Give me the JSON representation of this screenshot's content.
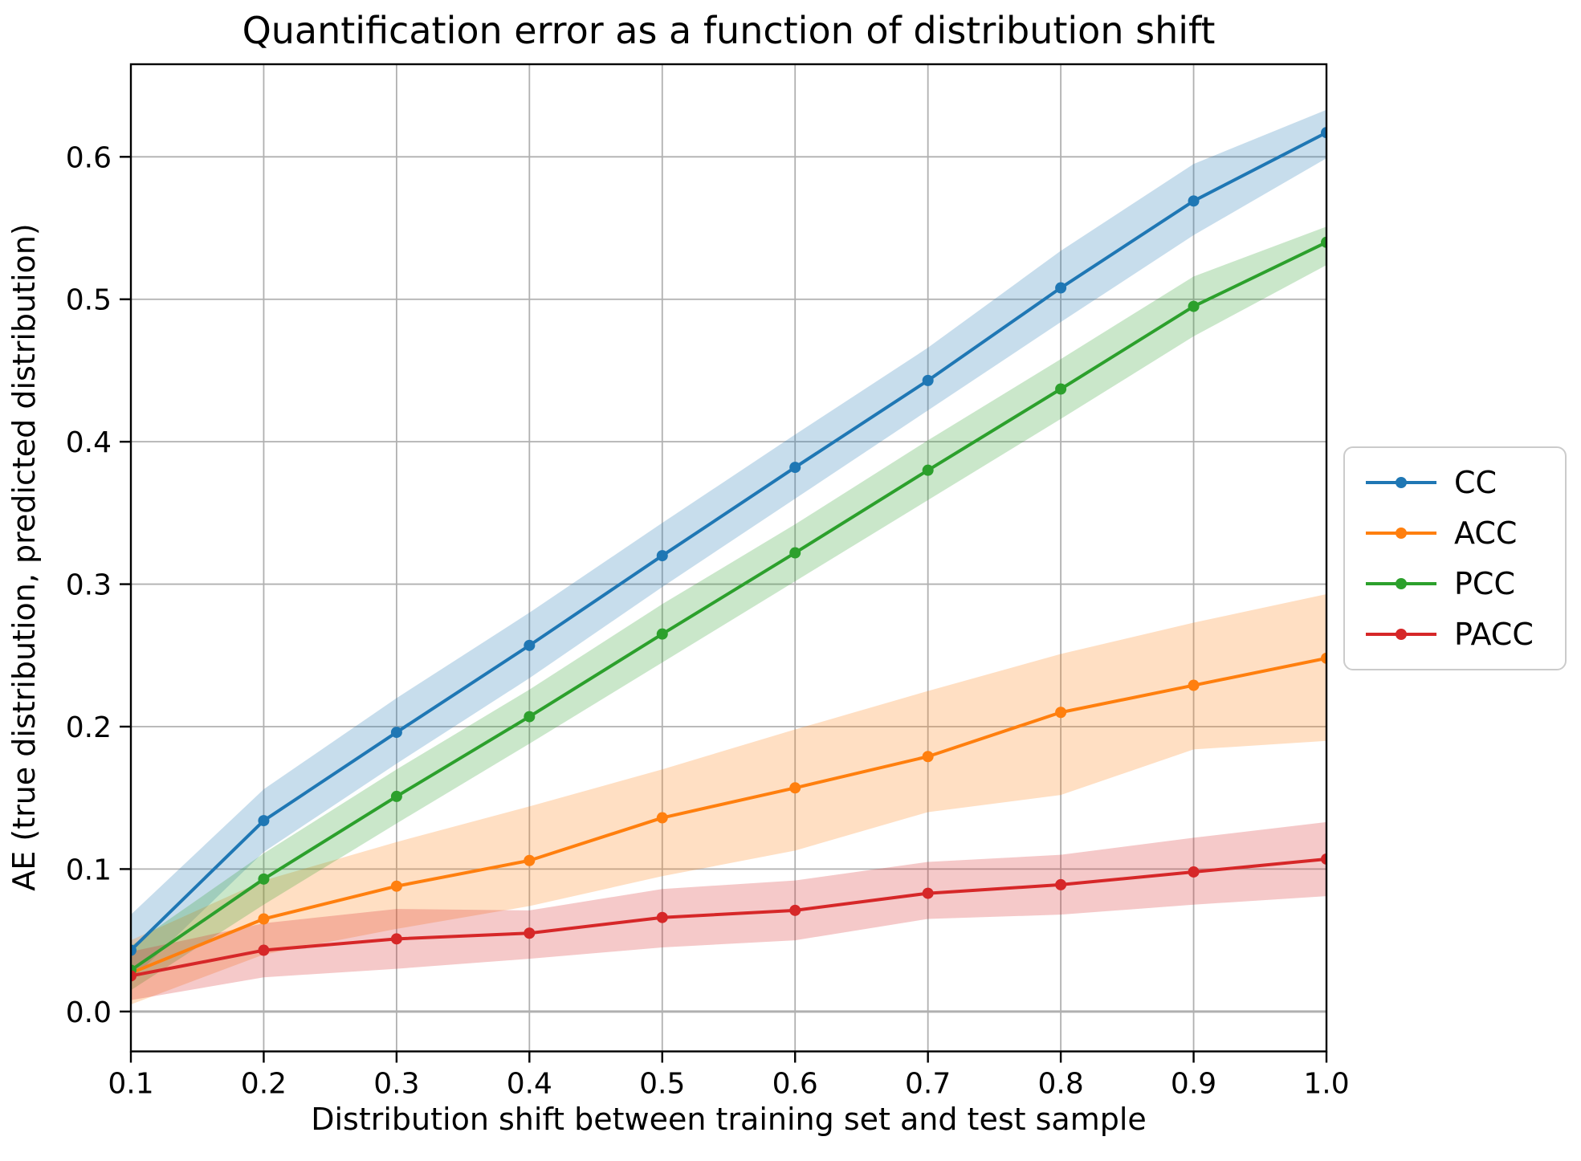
{
  "chart_data": {
    "type": "line",
    "title": "Quantification error as a function of distribution shift",
    "xlabel": "Distribution shift between training set and test sample",
    "ylabel": "AE (true distribution, predicted distribution)",
    "x": [
      0.1,
      0.2,
      0.3,
      0.4,
      0.5,
      0.6,
      0.7,
      0.8,
      0.9,
      1.0
    ],
    "xlim": [
      0.1,
      1.0
    ],
    "ylim": [
      -0.028,
      0.665
    ],
    "xtick_labels": [
      "0.1",
      "0.2",
      "0.3",
      "0.4",
      "0.5",
      "0.6",
      "0.7",
      "0.8",
      "0.9",
      "1.0"
    ],
    "ytick_labels": [
      "0.0",
      "0.1",
      "0.2",
      "0.3",
      "0.4",
      "0.5",
      "0.6"
    ],
    "grid": true,
    "grid_color": "#b0b0b0",
    "legend_position": "outside-right",
    "band_opacity": 0.25,
    "series": [
      {
        "name": "CC",
        "color": "#1f77b4",
        "values": [
          0.043,
          0.134,
          0.196,
          0.257,
          0.32,
          0.382,
          0.443,
          0.508,
          0.569,
          0.617
        ],
        "band_lower": [
          0.022,
          0.112,
          0.174,
          0.234,
          0.298,
          0.36,
          0.422,
          0.484,
          0.545,
          0.599
        ],
        "band_upper": [
          0.068,
          0.156,
          0.22,
          0.28,
          0.343,
          0.405,
          0.466,
          0.534,
          0.595,
          0.633
        ]
      },
      {
        "name": "ACC",
        "color": "#ff7f0e",
        "values": [
          0.027,
          0.065,
          0.088,
          0.106,
          0.136,
          0.157,
          0.179,
          0.21,
          0.229,
          0.248
        ],
        "band_lower": [
          0.005,
          0.04,
          0.058,
          0.074,
          0.095,
          0.113,
          0.14,
          0.152,
          0.184,
          0.19
        ],
        "band_upper": [
          0.05,
          0.092,
          0.119,
          0.144,
          0.17,
          0.198,
          0.225,
          0.251,
          0.273,
          0.293
        ]
      },
      {
        "name": "PCC",
        "color": "#2ca02c",
        "values": [
          0.029,
          0.093,
          0.151,
          0.207,
          0.265,
          0.322,
          0.38,
          0.437,
          0.495,
          0.54
        ],
        "band_lower": [
          0.015,
          0.075,
          0.132,
          0.188,
          0.245,
          0.302,
          0.359,
          0.416,
          0.474,
          0.524
        ],
        "band_upper": [
          0.046,
          0.111,
          0.17,
          0.226,
          0.286,
          0.342,
          0.401,
          0.458,
          0.516,
          0.551
        ]
      },
      {
        "name": "PACC",
        "color": "#d62728",
        "values": [
          0.025,
          0.043,
          0.051,
          0.055,
          0.066,
          0.071,
          0.083,
          0.089,
          0.098,
          0.107
        ],
        "band_lower": [
          0.008,
          0.024,
          0.03,
          0.037,
          0.045,
          0.05,
          0.065,
          0.068,
          0.075,
          0.081
        ],
        "band_upper": [
          0.042,
          0.062,
          0.072,
          0.071,
          0.086,
          0.092,
          0.105,
          0.11,
          0.122,
          0.133
        ]
      }
    ]
  }
}
